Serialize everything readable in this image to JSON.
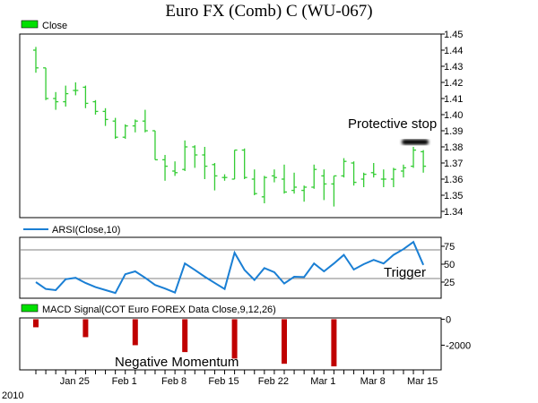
{
  "chart_data": [
    {
      "type": "ohlc",
      "title": "Euro FX (Comb) C (WU-067)",
      "legend": "Close",
      "legend_color": "#00e000",
      "bar_color": "#33cc33",
      "ylim": [
        1.34,
        1.45
      ],
      "y_ticks": [
        "1.45",
        "1.44",
        "1.43",
        "1.42",
        "1.41",
        "1.40",
        "1.39",
        "1.38",
        "1.37",
        "1.36",
        "1.35",
        "1.34"
      ],
      "bars": [
        [
          1.442,
          1.426,
          1.44,
          1.429
        ],
        [
          1.429,
          1.409,
          1.429,
          1.41
        ],
        [
          1.414,
          1.403,
          1.41,
          1.408
        ],
        [
          1.418,
          1.405,
          1.408,
          1.413
        ],
        [
          1.42,
          1.412,
          1.415,
          1.415
        ],
        [
          1.418,
          1.404,
          1.417,
          1.407
        ],
        [
          1.409,
          1.4,
          1.408,
          1.402
        ],
        [
          1.404,
          1.393,
          1.402,
          1.397
        ],
        [
          1.398,
          1.385,
          1.396,
          1.386
        ],
        [
          1.394,
          1.385,
          1.386,
          1.393
        ],
        [
          1.397,
          1.389,
          1.393,
          1.396
        ],
        [
          1.403,
          1.389,
          1.396,
          1.39
        ],
        [
          1.39,
          1.372,
          1.39,
          1.372
        ],
        [
          1.375,
          1.359,
          1.372,
          1.368
        ],
        [
          1.371,
          1.362,
          1.365,
          1.364
        ],
        [
          1.384,
          1.365,
          1.366,
          1.38
        ],
        [
          1.381,
          1.367,
          1.38,
          1.375
        ],
        [
          1.38,
          1.36,
          1.375,
          1.368
        ],
        [
          1.37,
          1.353,
          1.369,
          1.362
        ],
        [
          1.363,
          1.359,
          1.361,
          1.361
        ],
        [
          1.378,
          1.36,
          1.36,
          1.378
        ],
        [
          1.379,
          1.36,
          1.378,
          1.361
        ],
        [
          1.366,
          1.35,
          1.36,
          1.351
        ],
        [
          1.362,
          1.345,
          1.349,
          1.361
        ],
        [
          1.366,
          1.358,
          1.362,
          1.361
        ],
        [
          1.369,
          1.351,
          1.36,
          1.352
        ],
        [
          1.364,
          1.351,
          1.353,
          1.355
        ],
        [
          1.356,
          1.346,
          1.353,
          1.355
        ],
        [
          1.369,
          1.354,
          1.355,
          1.366
        ],
        [
          1.366,
          1.347,
          1.362,
          1.357
        ],
        [
          1.362,
          1.343,
          1.357,
          1.362
        ],
        [
          1.373,
          1.361,
          1.362,
          1.371
        ],
        [
          1.371,
          1.356,
          1.37,
          1.358
        ],
        [
          1.364,
          1.355,
          1.36,
          1.363
        ],
        [
          1.37,
          1.361,
          1.364,
          1.363
        ],
        [
          1.366,
          1.355,
          1.36,
          1.36
        ],
        [
          1.367,
          1.355,
          1.36,
          1.366
        ],
        [
          1.369,
          1.361,
          1.365,
          1.367
        ],
        [
          1.38,
          1.367,
          1.368,
          1.378
        ],
        [
          1.378,
          1.364,
          1.377,
          1.368
        ]
      ],
      "annotation": "Protective stop",
      "stop_level": 1.383
    },
    {
      "type": "line",
      "legend": "ARSI(Close,10)",
      "line_color": "#1a7fd4",
      "ylim": [
        2.5,
        87.5
      ],
      "y_ticks": [
        "75",
        "50",
        "25"
      ],
      "levels": [
        70,
        30
      ],
      "values": [
        25,
        15.4,
        13.8,
        29,
        31,
        23.8,
        18,
        13.9,
        9.8,
        36,
        40,
        31,
        21,
        16,
        10.4,
        51,
        42,
        32.5,
        23.8,
        15.4,
        66,
        42,
        28,
        44.6,
        38.8,
        23,
        32.5,
        32,
        51,
        40,
        51,
        63,
        42.5,
        50,
        56,
        51,
        63,
        71,
        81,
        49
      ],
      "annotation": "Trigger"
    },
    {
      "type": "bar",
      "legend": "MACD Signal(COT Euro FOREX Data Close,9,12,26)",
      "legend_color": "#00e000",
      "bar_color": "#c00000",
      "ylim": [
        -3900,
        100
      ],
      "y_ticks": [
        "0",
        "-2000"
      ],
      "bar_index": [
        0,
        5,
        10,
        15,
        20,
        25,
        30
      ],
      "values": [
        -620,
        -1380,
        -2000,
        -2530,
        -3030,
        -3430,
        -3630
      ],
      "annotation": "Negative Momentum"
    }
  ],
  "x_axis": {
    "labels": [
      {
        "text": "Jan 25",
        "bar": 4
      },
      {
        "text": "Feb 1",
        "bar": 9
      },
      {
        "text": "Feb 8",
        "bar": 14
      },
      {
        "text": "Feb 15",
        "bar": 19
      },
      {
        "text": "Feb 22",
        "bar": 24
      },
      {
        "text": "Mar 1",
        "bar": 29
      },
      {
        "text": "Mar 8",
        "bar": 34
      },
      {
        "text": "Mar 15",
        "bar": 39
      }
    ],
    "year": "2010"
  }
}
